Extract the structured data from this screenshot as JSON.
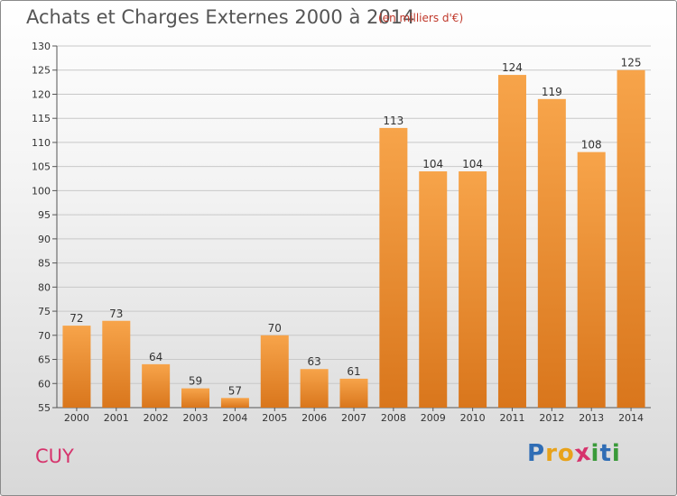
{
  "header": {
    "title": "Achats et Charges Externes 2000 à 2014",
    "subtitle": "(en milliers d'€)"
  },
  "commune": "CUY",
  "logo": {
    "letters": [
      "P",
      "r",
      "o",
      "x",
      "i",
      "t",
      "i"
    ],
    "colors": [
      "#2f6db5",
      "#e8a21a",
      "#e8a21a",
      "#d6336c",
      "#3a9a3a",
      "#2f6db5",
      "#3a9a3a"
    ]
  },
  "colors": {
    "bar_light": "#f7a44a",
    "bar_dark": "#d9761c",
    "grid": "#c8c8c8"
  },
  "chart_data": {
    "type": "bar",
    "title": "Achats et Charges Externes 2000 à 2014",
    "subtitle": "(en milliers d'€)",
    "categories": [
      "2000",
      "2001",
      "2002",
      "2003",
      "2004",
      "2005",
      "2006",
      "2007",
      "2008",
      "2009",
      "2010",
      "2011",
      "2012",
      "2013",
      "2014"
    ],
    "values": [
      72,
      73,
      64,
      59,
      57,
      70,
      63,
      61,
      113,
      104,
      104,
      124,
      119,
      108,
      125
    ],
    "ylim": [
      55,
      130
    ],
    "yticks": [
      55,
      60,
      65,
      70,
      75,
      80,
      85,
      90,
      95,
      100,
      105,
      110,
      115,
      120,
      125,
      130
    ],
    "grid": true
  }
}
